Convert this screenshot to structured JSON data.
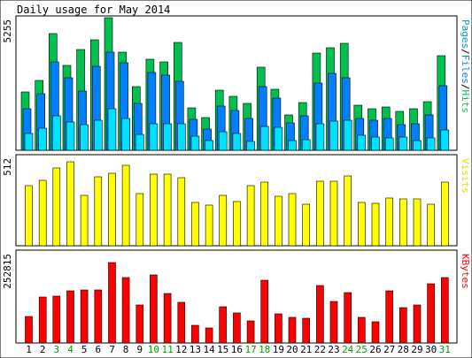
{
  "chart_data": {
    "type": "bar",
    "title": "Daily usage for May 2014",
    "categories": [
      "1",
      "2",
      "3",
      "4",
      "5",
      "6",
      "7",
      "8",
      "9",
      "10",
      "11",
      "12",
      "13",
      "14",
      "15",
      "16",
      "17",
      "18",
      "19",
      "20",
      "21",
      "22",
      "23",
      "24",
      "25",
      "26",
      "27",
      "28",
      "29",
      "30",
      "31"
    ],
    "weekend_days": [
      "3",
      "4",
      "10",
      "11",
      "17",
      "18",
      "24",
      "25",
      "31"
    ],
    "panels": [
      {
        "name": "hits",
        "ymax_label": "5255",
        "ylim": [
          0,
          5255
        ],
        "side_label_parts": [
          {
            "text": "Pages",
            "color": "#00a0d0"
          },
          {
            "text": "/",
            "color": "#000000"
          },
          {
            "text": "Files",
            "color": "#0080ff"
          },
          {
            "text": "/",
            "color": "#000000"
          },
          {
            "text": "Hits",
            "color": "#00c060"
          }
        ],
        "series": [
          {
            "name": "Hits",
            "color": "#00c050",
            "values": [
              2283,
              2750,
              4598,
              3350,
              3973,
              4366,
              5225,
              3867,
              2503,
              3588,
              3467,
              4253,
              1671,
              1290,
              2355,
              2106,
              1853,
              3261,
              2408,
              1390,
              1888,
              3813,
              4022,
              4227,
              1768,
              1642,
              1696,
              1525,
              1620,
              1922,
              3741
            ]
          },
          {
            "name": "Files",
            "color": "#0080ff",
            "values": [
              1631,
              2219,
              3470,
              2863,
              2345,
              3318,
              3875,
              3436,
              1855,
              3059,
              2962,
              2704,
              1204,
              826,
              1733,
              1553,
              1244,
              2503,
              2047,
              1068,
              1346,
              2654,
              3013,
              2863,
              1249,
              1190,
              1266,
              1022,
              1061,
              1386,
              2530
            ]
          },
          {
            "name": "Pages",
            "color": "#00e0ff",
            "values": [
              649,
              870,
              1370,
              1129,
              1017,
              1183,
              1622,
              1258,
              624,
              1048,
              1043,
              1038,
              542,
              382,
              725,
              665,
              355,
              943,
              893,
              380,
              418,
              1028,
              1142,
              1197,
              575,
              509,
              486,
              517,
              388,
              496,
              801
            ]
          }
        ]
      },
      {
        "name": "visits",
        "ymax_label": "512",
        "ylim": [
          0,
          512
        ],
        "side_label_parts": [
          {
            "text": "Visits",
            "color": "#e0e000"
          }
        ],
        "series": [
          {
            "name": "Visits",
            "color": "#ffff00",
            "values": [
              339,
              371,
              443,
              475,
              287,
              391,
              413,
              455,
              297,
              405,
              405,
              385,
              248,
              233,
              285,
              253,
              339,
              363,
              279,
              297,
              235,
              365,
              367,
              395,
              245,
              239,
              269,
              265,
              265,
              237,
              363
            ]
          }
        ]
      },
      {
        "name": "kbytes",
        "ymax_label": "252815",
        "ylim": [
          0,
          252815
        ],
        "side_label_parts": [
          {
            "text": "KBytes",
            "color": "#ff0000"
          }
        ],
        "series": [
          {
            "name": "KBytes",
            "color": "#ff0000",
            "values": [
              72000,
              127000,
              128000,
              143000,
              146000,
              147000,
              222000,
              181000,
              104000,
              186000,
              135000,
              113000,
              49000,
              41000,
              100000,
              83000,
              60000,
              173000,
              81000,
              71000,
              68000,
              158000,
              115000,
              138000,
              70000,
              59000,
              143000,
              97000,
              104000,
              162000,
              180000
            ]
          }
        ]
      }
    ]
  }
}
